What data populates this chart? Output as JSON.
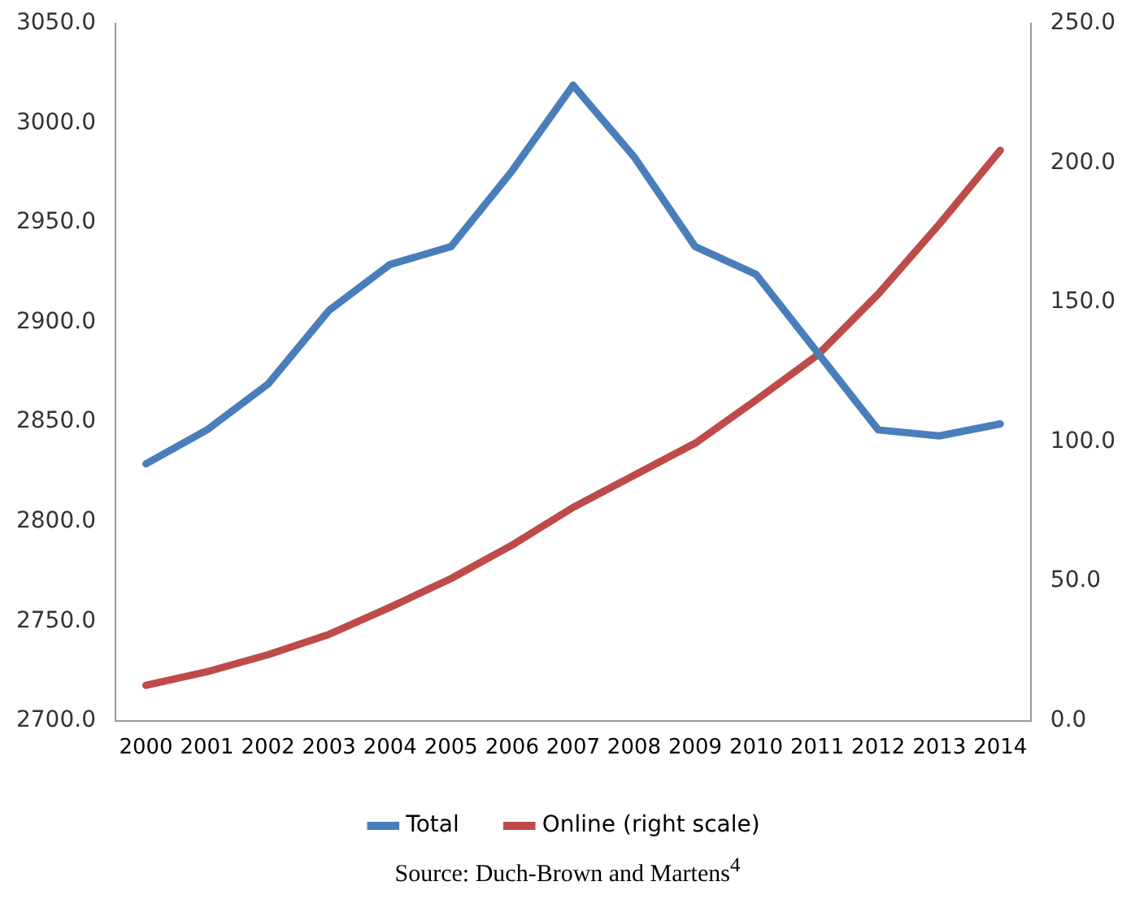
{
  "chart_data": {
    "type": "line",
    "categories": [
      "2000",
      "2001",
      "2002",
      "2003",
      "2004",
      "2005",
      "2006",
      "2007",
      "2008",
      "2009",
      "2010",
      "2011",
      "2012",
      "2013",
      "2014"
    ],
    "series": [
      {
        "name": "Total",
        "color": "#4a7ebb",
        "values": [
          2829,
          2846,
          2869,
          2906,
          2929,
          2938,
          2976,
          3019,
          2983,
          2938,
          2924,
          2885,
          2846,
          2843,
          2849
        ]
      },
      {
        "name": "Online (right scale)",
        "color": "#be4b48",
        "axis": "y2",
        "values": [
          12.7,
          17.6,
          23.7,
          31,
          40.7,
          51,
          63,
          76.5,
          88,
          99.5,
          115,
          131,
          153,
          178,
          204.5
        ]
      }
    ],
    "ylim": [
      2700,
      3050
    ],
    "yticks": [
      {
        "value": 2700,
        "label": "2700.0"
      },
      {
        "value": 2750,
        "label": "2750.0"
      },
      {
        "value": 2800,
        "label": "2800.0"
      },
      {
        "value": 2850,
        "label": "2850.0"
      },
      {
        "value": 2900,
        "label": "2900.0"
      },
      {
        "value": 2950,
        "label": "2950.0"
      },
      {
        "value": 3000,
        "label": "3000.0"
      },
      {
        "value": 3050,
        "label": "3050.0"
      }
    ],
    "y2lim": [
      0,
      250
    ],
    "y2ticks": [
      {
        "value": 0,
        "label": "0.0"
      },
      {
        "value": 50,
        "label": "50.0"
      },
      {
        "value": 100,
        "label": "100.0"
      },
      {
        "value": 150,
        "label": "150.0"
      },
      {
        "value": 200,
        "label": "200.0"
      },
      {
        "value": 250,
        "label": "250.0"
      }
    ],
    "grid": false,
    "legend": "bottom",
    "marker": "none",
    "line_style": "solid",
    "annotations": [
      "Source: Duch-Brown and Martens$^{4}$"
    ]
  }
}
